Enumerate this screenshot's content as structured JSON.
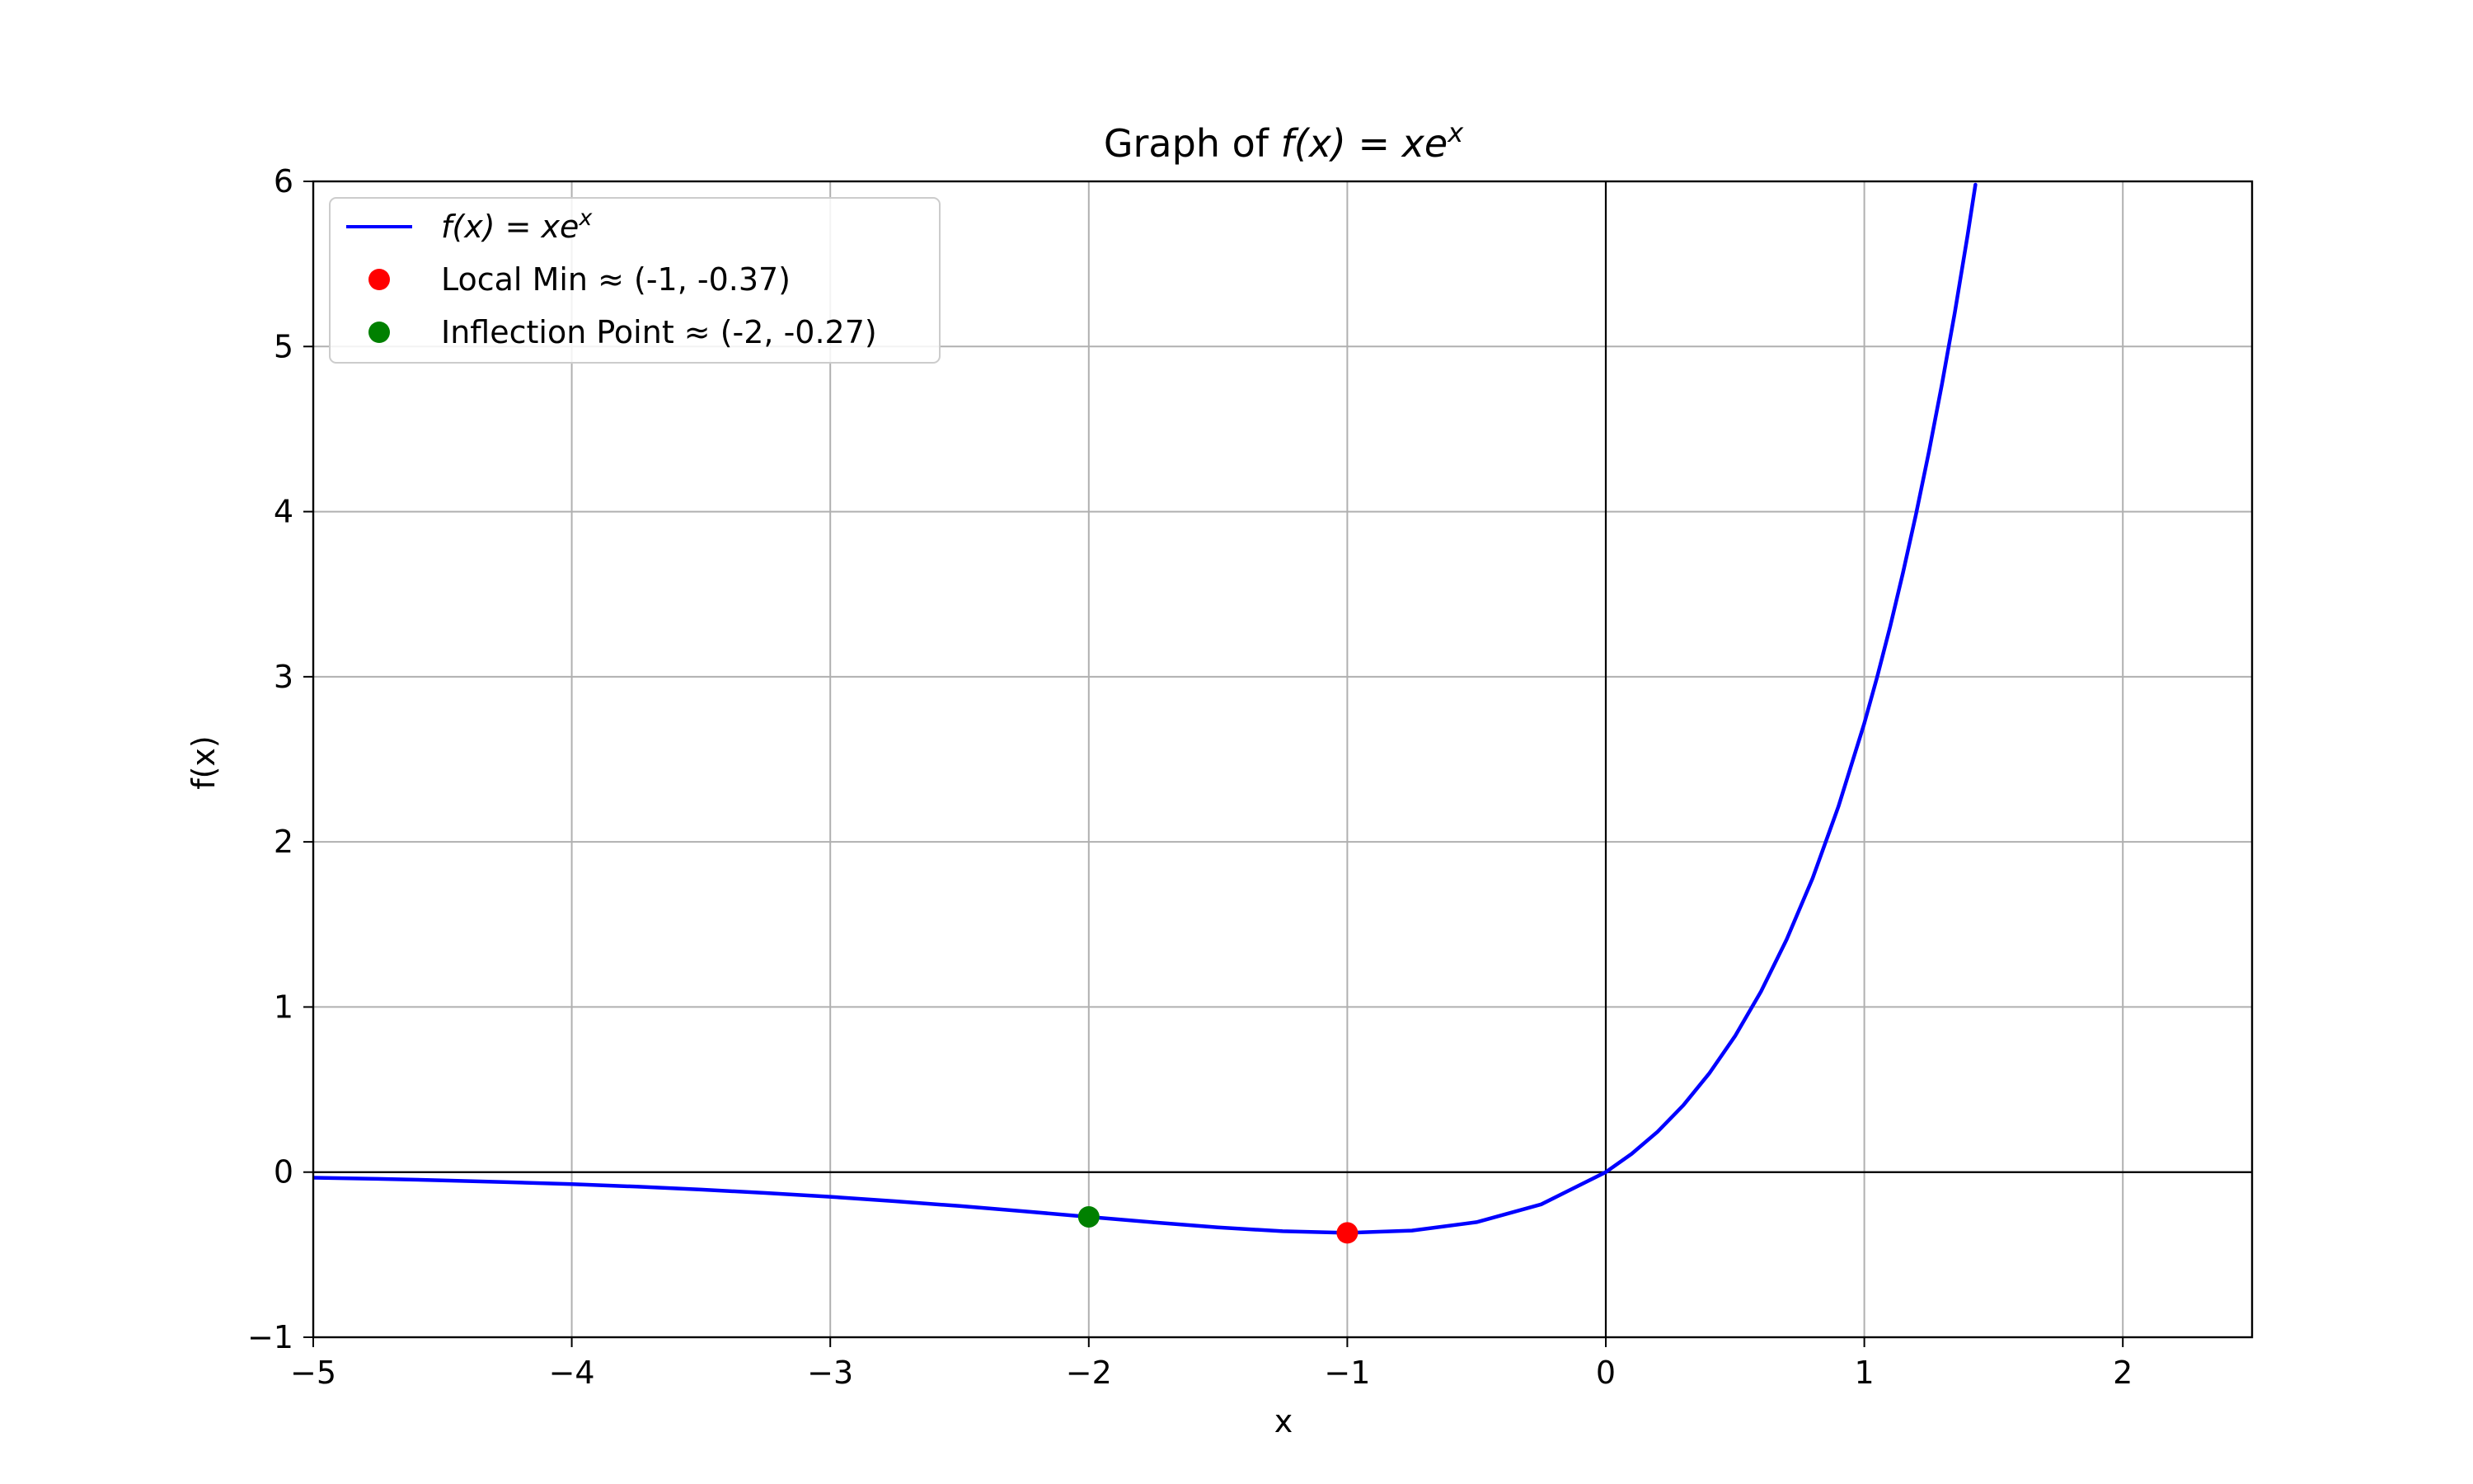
{
  "chart_data": {
    "type": "line",
    "title": {
      "prefix": "Graph of ",
      "math": "f(x) = xe",
      "exponent": "x"
    },
    "xlabel": "x",
    "ylabel": "f(x)",
    "xlim": [
      -5,
      2.5
    ],
    "ylim": [
      -1,
      6
    ],
    "xticks": [
      -5,
      -4,
      -3,
      -2,
      -1,
      0,
      1,
      2
    ],
    "yticks": [
      -1,
      0,
      1,
      2,
      3,
      4,
      5,
      6
    ],
    "x_tick_labels": [
      "−5",
      "−4",
      "−3",
      "−2",
      "−1",
      "0",
      "1",
      "2"
    ],
    "y_tick_labels": [
      "−1",
      "0",
      "1",
      "2",
      "3",
      "4",
      "5",
      "6"
    ],
    "grid": true,
    "reference_lines": {
      "x": 0,
      "y": 0
    },
    "legend_position": "upper-left",
    "series": [
      {
        "type": "line",
        "name": "f(x) = xe",
        "name_exponent": "x",
        "color": "#0000ff",
        "x": [
          -5.0,
          -4.75,
          -4.5,
          -4.25,
          -4.0,
          -3.75,
          -3.5,
          -3.25,
          -3.0,
          -2.75,
          -2.5,
          -2.25,
          -2.0,
          -1.75,
          -1.5,
          -1.25,
          -1.0,
          -0.75,
          -0.5,
          -0.25,
          0.0,
          0.1,
          0.2,
          0.3,
          0.4,
          0.5,
          0.6,
          0.7,
          0.8,
          0.9,
          1.0,
          1.05,
          1.1,
          1.15,
          1.2,
          1.25,
          1.3,
          1.35,
          1.4,
          1.43
        ],
        "y": [
          -0.034,
          -0.041,
          -0.05,
          -0.061,
          -0.073,
          -0.088,
          -0.106,
          -0.126,
          -0.149,
          -0.176,
          -0.205,
          -0.237,
          -0.271,
          -0.304,
          -0.335,
          -0.358,
          -0.368,
          -0.354,
          -0.303,
          -0.195,
          0.0,
          0.111,
          0.244,
          0.405,
          0.597,
          0.824,
          1.093,
          1.41,
          1.78,
          2.214,
          2.718,
          3.001,
          3.305,
          3.632,
          3.984,
          4.363,
          4.77,
          5.206,
          5.677,
          5.98
        ]
      },
      {
        "type": "point",
        "name": "Local Min ≈ (-1, -0.37)",
        "color": "#ff0000",
        "x": -1,
        "y": -0.368
      },
      {
        "type": "point",
        "name": "Inflection Point ≈ (-2, -0.27)",
        "color": "#008000",
        "x": -2,
        "y": -0.271
      }
    ]
  }
}
